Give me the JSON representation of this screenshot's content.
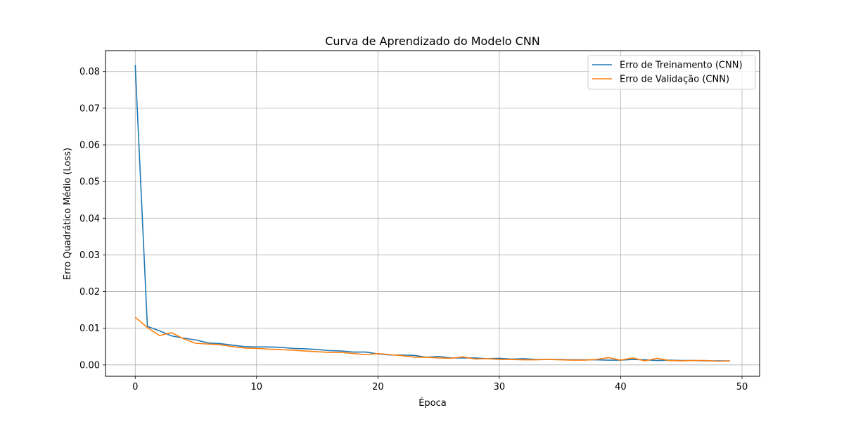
{
  "chart_data": {
    "type": "line",
    "title": "Curva de Aprendizado do Modelo CNN",
    "xlabel": "Época",
    "ylabel": "Erro Quadrático Médio (Loss)",
    "xlim": [
      -2.45,
      51.45
    ],
    "ylim": [
      -0.0031,
      0.0857
    ],
    "xticks": [
      0,
      10,
      20,
      30,
      40,
      50
    ],
    "yticks": [
      0.0,
      0.01,
      0.02,
      0.03,
      0.04,
      0.05,
      0.06,
      0.07,
      0.08
    ],
    "ytick_labels": [
      "0.00",
      "0.01",
      "0.02",
      "0.03",
      "0.04",
      "0.05",
      "0.06",
      "0.07",
      "0.08"
    ],
    "grid": true,
    "legend_position": "top-right",
    "x": [
      0,
      1,
      2,
      3,
      4,
      5,
      6,
      7,
      8,
      9,
      10,
      11,
      12,
      13,
      14,
      15,
      16,
      17,
      18,
      19,
      20,
      21,
      22,
      23,
      24,
      25,
      26,
      27,
      28,
      29,
      30,
      31,
      32,
      33,
      34,
      35,
      36,
      37,
      38,
      39,
      40,
      41,
      42,
      43,
      44,
      45,
      46,
      47,
      48,
      49
    ],
    "series": [
      {
        "name": "Erro de Treinamento (CNN)",
        "color": "#1f77b4",
        "values": [
          0.0818,
          0.0105,
          0.0093,
          0.0079,
          0.0073,
          0.0068,
          0.006,
          0.0058,
          0.0054,
          0.005,
          0.0049,
          0.0049,
          0.0048,
          0.0045,
          0.0044,
          0.0042,
          0.0039,
          0.0038,
          0.0035,
          0.0035,
          0.003,
          0.0027,
          0.0027,
          0.0026,
          0.0021,
          0.0023,
          0.0019,
          0.0019,
          0.0019,
          0.0017,
          0.0018,
          0.0016,
          0.0017,
          0.0015,
          0.0015,
          0.0015,
          0.0014,
          0.0014,
          0.0014,
          0.0013,
          0.0013,
          0.0015,
          0.0014,
          0.0012,
          0.0013,
          0.0012,
          0.0012,
          0.0011,
          0.0011,
          0.0011
        ]
      },
      {
        "name": "Erro de Validação (CNN)",
        "color": "#ff7f0e",
        "values": [
          0.013,
          0.0102,
          0.008,
          0.0088,
          0.0071,
          0.0059,
          0.0057,
          0.0055,
          0.005,
          0.0046,
          0.0045,
          0.0043,
          0.0042,
          0.004,
          0.0038,
          0.0036,
          0.0034,
          0.0034,
          0.0031,
          0.0028,
          0.0031,
          0.0028,
          0.0025,
          0.0021,
          0.0021,
          0.0019,
          0.0018,
          0.0022,
          0.0016,
          0.0017,
          0.0015,
          0.0015,
          0.0014,
          0.0014,
          0.0015,
          0.0014,
          0.0013,
          0.0013,
          0.0015,
          0.002,
          0.0013,
          0.0019,
          0.0011,
          0.0018,
          0.0012,
          0.0011,
          0.0012,
          0.0012,
          0.001,
          0.0011
        ]
      }
    ]
  }
}
